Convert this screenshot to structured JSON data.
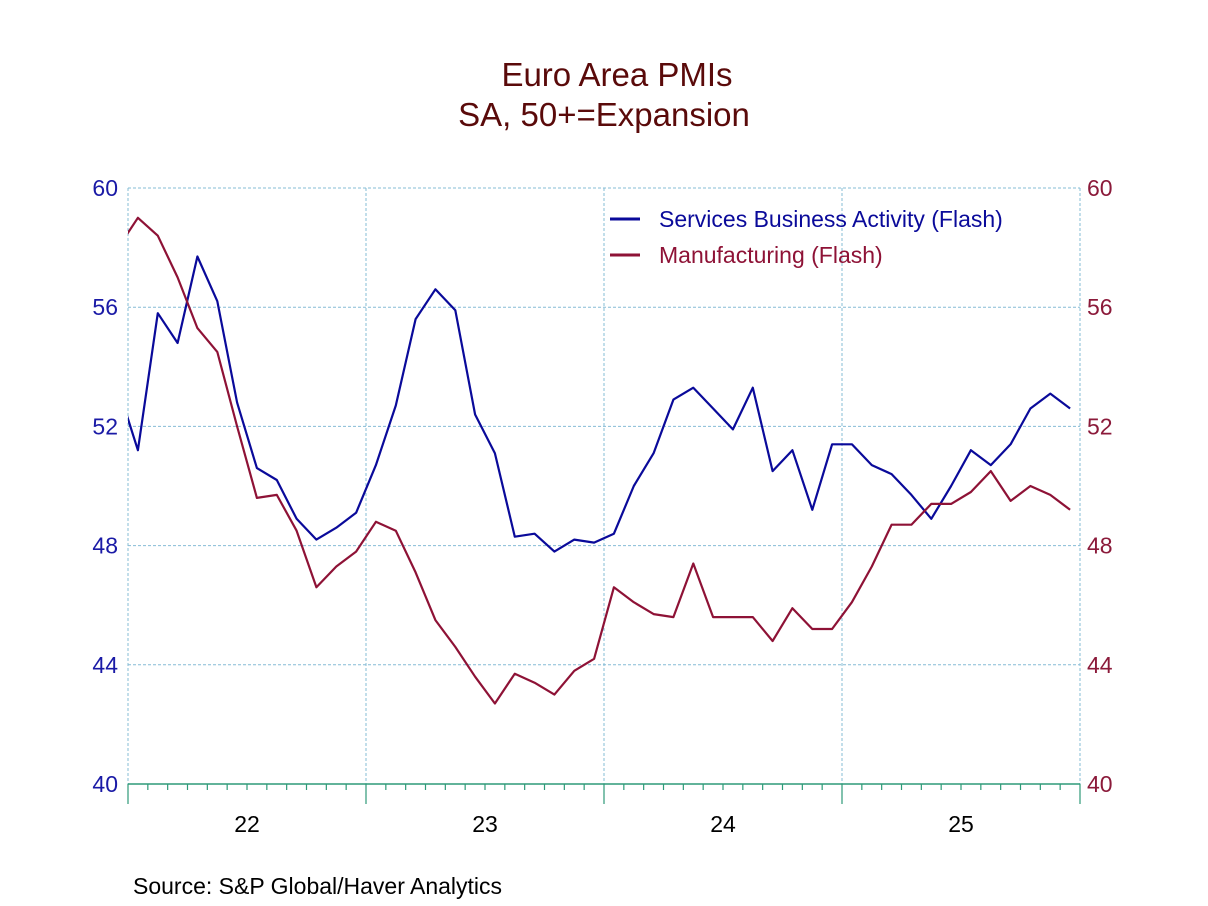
{
  "chart_data": {
    "type": "line",
    "title": "Euro Area PMIs",
    "subtitle": "SA, 50+=Expansion",
    "source": "Source:  S&P Global/Haver Analytics",
    "frequency": "monthly",
    "x_range": [
      "2021-12",
      "2025-12"
    ],
    "x_tick_labels": [
      "22",
      "23",
      "24",
      "25"
    ],
    "y_left": {
      "range": [
        40,
        60
      ],
      "ticks": [
        40,
        44,
        48,
        52,
        56,
        60
      ],
      "color": "#1a1aa6"
    },
    "y_right": {
      "range": [
        40,
        60
      ],
      "ticks": [
        40,
        44,
        48,
        52,
        56,
        60
      ],
      "color": "#8b1a3a"
    },
    "grid": true,
    "legend_placement": "top-right",
    "x": [
      "2021-12",
      "2022-01",
      "2022-02",
      "2022-03",
      "2022-04",
      "2022-05",
      "2022-06",
      "2022-07",
      "2022-08",
      "2022-09",
      "2022-10",
      "2022-11",
      "2022-12",
      "2023-01",
      "2023-02",
      "2023-03",
      "2023-04",
      "2023-05",
      "2023-06",
      "2023-07",
      "2023-08",
      "2023-09",
      "2023-10",
      "2023-11",
      "2023-12",
      "2024-01",
      "2024-02",
      "2024-03",
      "2024-04",
      "2024-05",
      "2024-06",
      "2024-07",
      "2024-08",
      "2024-09",
      "2024-10",
      "2024-11",
      "2024-12",
      "2025-01",
      "2025-02",
      "2025-03",
      "2025-04",
      "2025-05",
      "2025-06",
      "2025-07",
      "2025-08",
      "2025-09",
      "2025-10",
      "2025-11",
      "2025-12"
    ],
    "series": [
      {
        "name": "Services Business Activity (Flash)",
        "axis": "left",
        "color": "#0a0a9a",
        "values": [
          53.3,
          51.2,
          55.8,
          54.8,
          57.7,
          56.2,
          52.8,
          50.6,
          50.2,
          48.9,
          48.2,
          48.6,
          49.1,
          50.7,
          52.7,
          55.6,
          56.6,
          55.9,
          52.4,
          51.1,
          48.3,
          48.4,
          47.8,
          48.2,
          48.1,
          48.4,
          50.0,
          51.1,
          52.9,
          53.3,
          52.6,
          51.9,
          53.3,
          50.5,
          51.2,
          49.2,
          51.4,
          51.4,
          50.7,
          50.4,
          49.7,
          48.9,
          50.0,
          51.2,
          50.7,
          51.4,
          52.6,
          53.1,
          52.6
        ]
      },
      {
        "name": "Manufacturing (Flash)",
        "axis": "right",
        "color": "#8e1236",
        "values": [
          58.0,
          59.0,
          58.4,
          57.0,
          55.3,
          54.5,
          52.0,
          49.6,
          49.7,
          48.5,
          46.6,
          47.3,
          47.8,
          48.8,
          48.5,
          47.1,
          45.5,
          44.6,
          43.6,
          42.7,
          43.7,
          43.4,
          43.0,
          43.8,
          44.2,
          46.6,
          46.1,
          45.7,
          45.6,
          47.4,
          45.6,
          45.6,
          45.6,
          44.8,
          45.9,
          45.2,
          45.2,
          46.1,
          47.3,
          48.7,
          48.7,
          49.4,
          49.4,
          49.8,
          50.5,
          49.5,
          50.0,
          49.7,
          49.2
        ]
      }
    ]
  }
}
